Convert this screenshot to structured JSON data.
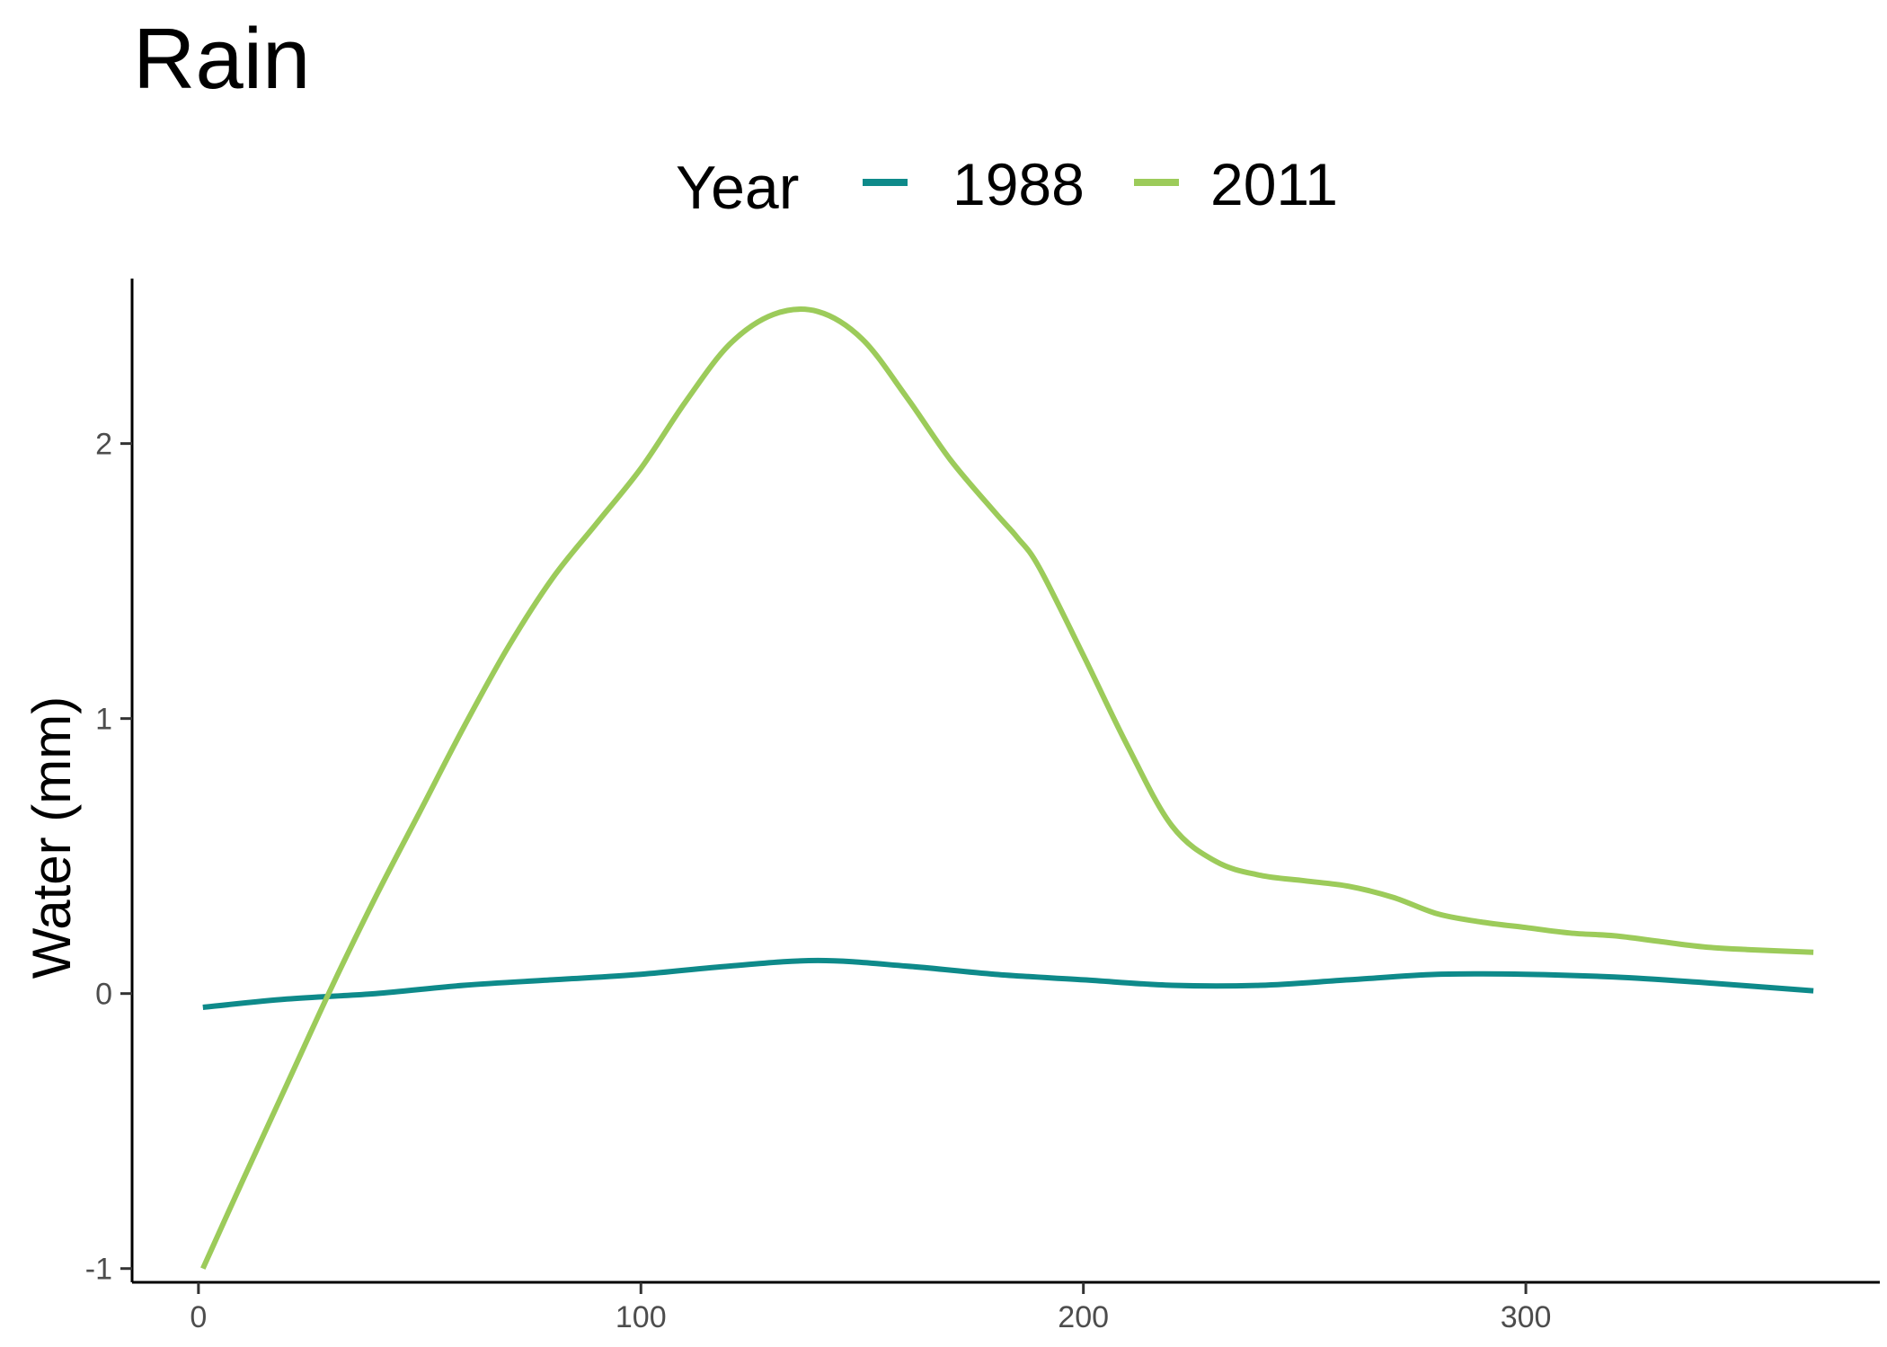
{
  "chart_data": {
    "type": "line",
    "title": "Rain",
    "xlabel": "",
    "ylabel": "Water (mm)",
    "legend": {
      "title": "Year",
      "position": "top"
    },
    "xlim": [
      -15,
      380
    ],
    "ylim": [
      -1.05,
      2.6
    ],
    "xticks": [
      0,
      100,
      200,
      300
    ],
    "yticks": [
      -1,
      0,
      1,
      2
    ],
    "grid": false,
    "series": [
      {
        "name": "1988",
        "color": "#0e8a8a",
        "x": [
          1,
          20,
          40,
          60,
          80,
          100,
          120,
          140,
          160,
          180,
          200,
          220,
          240,
          260,
          280,
          300,
          320,
          340,
          365
        ],
        "y": [
          -0.05,
          -0.02,
          0.0,
          0.03,
          0.05,
          0.07,
          0.1,
          0.12,
          0.1,
          0.07,
          0.05,
          0.03,
          0.03,
          0.05,
          0.07,
          0.07,
          0.06,
          0.04,
          0.01
        ]
      },
      {
        "name": "2011",
        "color": "#9ccb5a",
        "x": [
          1,
          10,
          20,
          30,
          40,
          50,
          60,
          70,
          80,
          90,
          100,
          110,
          120,
          130,
          140,
          150,
          160,
          170,
          180,
          185,
          190,
          200,
          210,
          220,
          230,
          240,
          250,
          260,
          270,
          280,
          290,
          300,
          310,
          320,
          330,
          340,
          350,
          365
        ],
        "y": [
          -1.0,
          -0.68,
          -0.33,
          0.02,
          0.35,
          0.66,
          0.97,
          1.26,
          1.51,
          1.71,
          1.91,
          2.15,
          2.36,
          2.47,
          2.48,
          2.38,
          2.17,
          1.94,
          1.75,
          1.66,
          1.55,
          1.23,
          0.9,
          0.61,
          0.48,
          0.43,
          0.41,
          0.39,
          0.35,
          0.29,
          0.26,
          0.24,
          0.22,
          0.21,
          0.19,
          0.17,
          0.16,
          0.15
        ]
      }
    ]
  }
}
